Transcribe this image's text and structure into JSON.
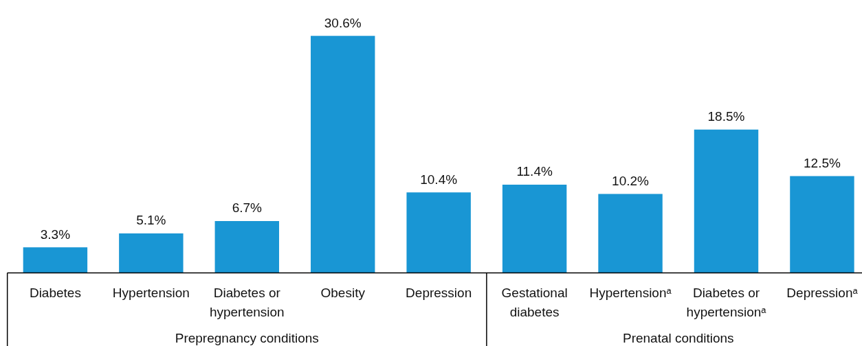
{
  "chart_data": {
    "type": "bar",
    "categories": [
      "Diabetes",
      "Hypertension",
      "Diabetes or hypertension",
      "Obesity",
      "Depression",
      "Gestational diabetes",
      "Hypertensionᵃ",
      "Diabetes or hypertensionᵃ",
      "Depressionᵃ"
    ],
    "values": [
      3.3,
      5.1,
      6.7,
      30.6,
      10.4,
      11.4,
      10.2,
      18.5,
      12.5
    ],
    "value_labels": [
      "3.3%",
      "5.1%",
      "6.7%",
      "30.6%",
      "10.4%",
      "11.4%",
      "10.2%",
      "18.5%",
      "12.5%"
    ],
    "color": "#1996d4",
    "annotations": [
      "Prepregnancy conditions",
      "Prenatal conditions"
    ]
  }
}
